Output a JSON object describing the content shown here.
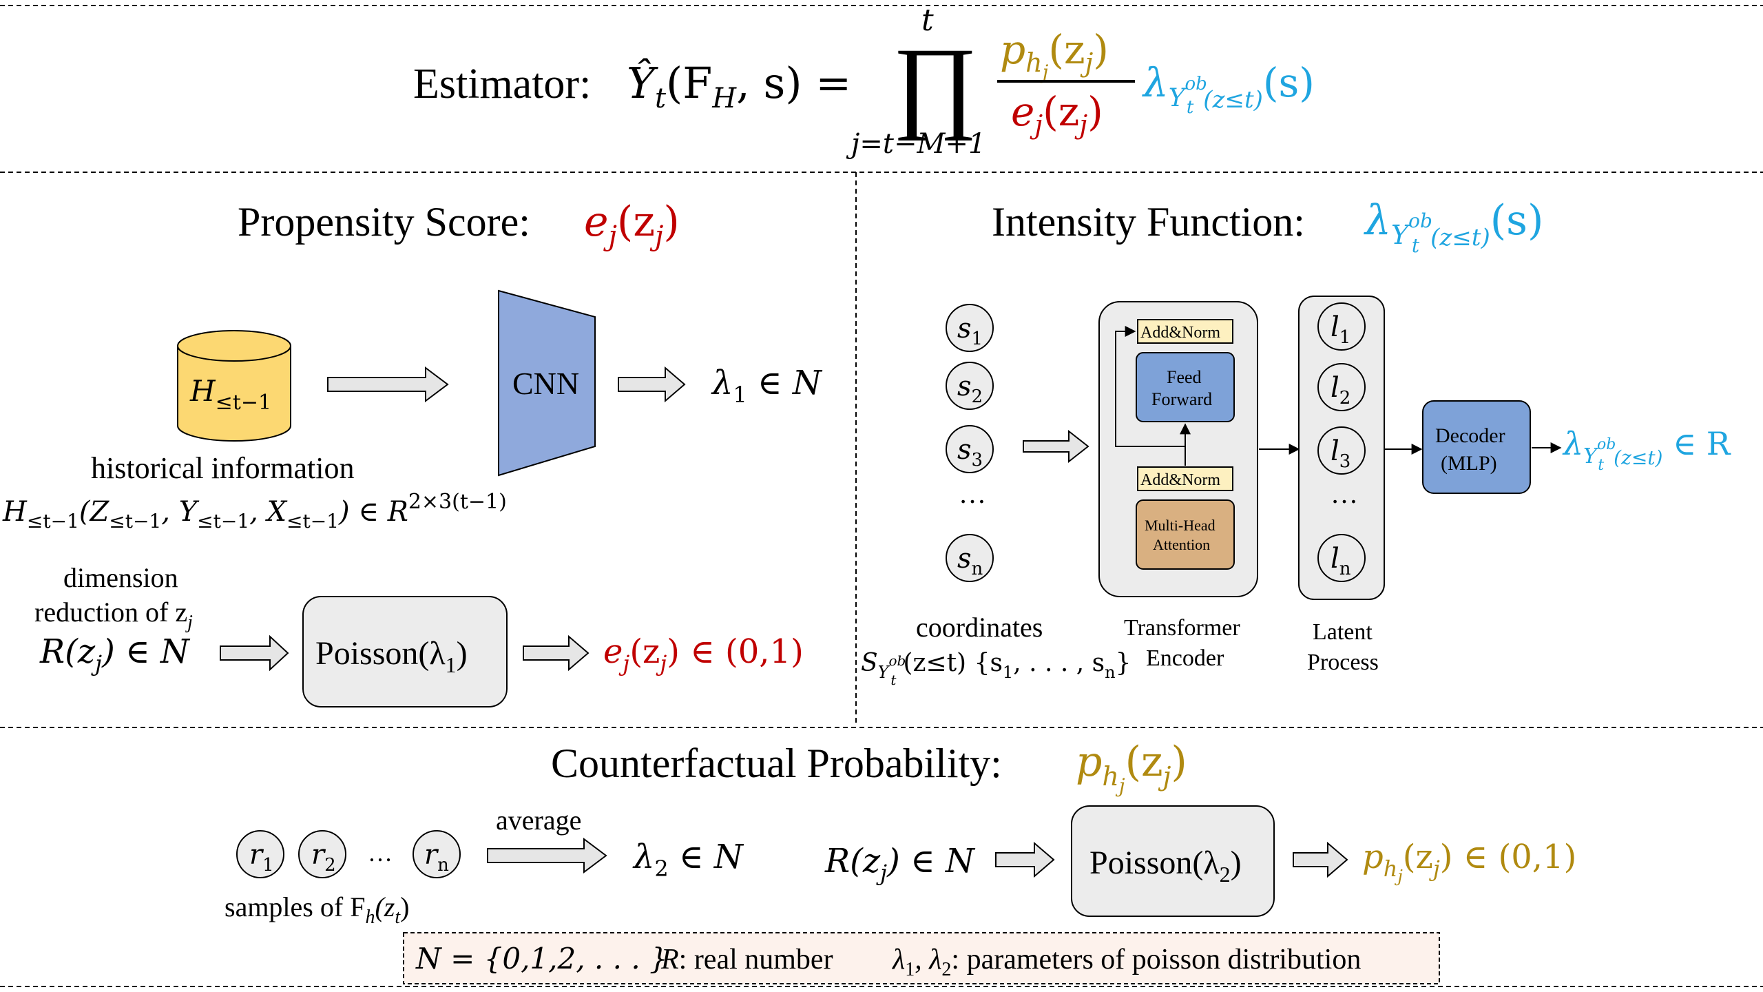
{
  "colors": {
    "propensity_red": "#c00000",
    "intensity_blue": "#1fa5e0",
    "counterfactual_gold": "#b08a10",
    "cnn_fill": "#8fa9dc",
    "cylinder_fill": "#fcd872",
    "addnorm_fill": "#fdf0c0",
    "ff_fill": "#7ea2d8",
    "mha_fill": "#d9b081",
    "decoder_fill": "#7ea2d8",
    "panel_fill": "#ececec",
    "legend_fill": "#fdf2ec"
  },
  "estimator": {
    "label": "Estimator:",
    "lhs": "Ŷ",
    "lhs_sub": "t",
    "lhs_args": "(F",
    "lhs_args_sub": "H",
    "lhs_args_end": ", s) =",
    "prod_top": "t",
    "prod_symbol": "∏",
    "prod_bottom": "j=t−M+1",
    "numerator": "p",
    "numerator_sub": "h",
    "numerator_subsub": "j",
    "numerator_arg": "(z",
    "numerator_arg_sub": "j",
    "numerator_arg_end": ")",
    "denominator": "e",
    "denominator_sub": "j",
    "denominator_arg": "(z",
    "denominator_arg_sub": "j",
    "denominator_arg_end": ")",
    "lambda": "λ",
    "lambda_sub": "Y",
    "lambda_sub_sup": "ob",
    "lambda_sub_sub": "t",
    "lambda_sub_arg": "(z≤t)",
    "lambda_arg": "(s)"
  },
  "propensity": {
    "title": "Propensity Score:",
    "title_math": "e",
    "title_math_sub": "j",
    "title_math_arg": "(z",
    "title_math_arg_sub": "j",
    "title_math_end": ")",
    "cylinder_label": "H",
    "cylinder_label_sub": "≤t−1",
    "hist_info": "historical information",
    "hist_formula_H": "H",
    "hist_formula_H_sub": "≤t−1",
    "hist_formula_open": "(Z",
    "hist_formula_Z_sub": "≤t−1",
    "hist_formula_Y": ", Y",
    "hist_formula_Y_sub": "≤t−1",
    "hist_formula_X": ", X",
    "hist_formula_X_sub": "≤t−1",
    "hist_formula_close": ") ∈ R",
    "hist_formula_sup": "2×3(t−1)",
    "cnn_label": "CNN",
    "lambda1": "λ",
    "lambda1_sub": "1",
    "lambda1_rest": " ∈ N",
    "dim_line1": "dimension",
    "dim_line2": "reduction of z",
    "dim_line2_sub": "j",
    "rz": "R(z",
    "rz_sub": "j",
    "rz_end": ") ∈ N",
    "poisson": "Poisson(λ",
    "poisson_sub": "1",
    "poisson_end": ")",
    "ej_out": "e",
    "ej_out_sub": "j",
    "ej_out_arg": "(z",
    "ej_out_arg_sub": "j",
    "ej_out_end": ") ∈ (0,1)"
  },
  "intensity": {
    "title": "Intensity Function:",
    "title_math": "λ",
    "title_math_sub": "Y",
    "title_math_sup": "ob",
    "title_math_subsub": "t",
    "title_math_arg": "(z≤t)",
    "title_math_end": "(s)",
    "inputs": [
      "s",
      "s",
      "s",
      "…",
      "s"
    ],
    "input_subs": [
      "1",
      "2",
      "3",
      "",
      "n"
    ],
    "latents": [
      "l",
      "l",
      "l",
      "…",
      "l"
    ],
    "latent_subs": [
      "1",
      "2",
      "3",
      "",
      "n"
    ],
    "addnorm_top": "Add&Norm",
    "feed_forward_1": "Feed",
    "feed_forward_2": "Forward",
    "addnorm_bottom": "Add&Norm",
    "mha_1": "Multi-Head",
    "mha_2": "Attention",
    "coordinates": "coordinates",
    "coord_S": "S",
    "coord_S_sub": "Y",
    "coord_S_sup": "ob",
    "coord_S_subsub": "t",
    "coord_rest": "(z≤t) {s",
    "coord_s1_sub": "1",
    "coord_mid": ", . . . , s",
    "coord_sn_sub": "n",
    "coord_end": "}",
    "encoder_line1": "Transformer",
    "encoder_line2": "Encoder",
    "latent_line1": "Latent",
    "latent_line2": "Process",
    "decoder_line1": "Decoder",
    "decoder_line2": "(MLP)",
    "out_lambda": "λ",
    "out_sub": "Y",
    "out_sup": "ob",
    "out_subsub": "t",
    "out_arg": "(z≤t)",
    "out_rest": " ∈ R"
  },
  "counterfactual": {
    "title": "Counterfactual Probability:",
    "title_math": "p",
    "title_math_sub": "h",
    "title_math_subsub": "j",
    "title_math_arg": "(z",
    "title_math_arg_sub": "j",
    "title_math_end": ")",
    "samples": [
      "r",
      "r",
      "…",
      "r"
    ],
    "sample_subs": [
      "1",
      "2",
      "",
      "n"
    ],
    "average": "average",
    "lambda2": "λ",
    "lambda2_sub": "2",
    "lambda2_rest": " ∈ N",
    "samples_label": "samples of F",
    "samples_label_sub": "h",
    "samples_label_arg": "(z",
    "samples_label_arg_sub": "t",
    "samples_label_end": ")",
    "rz": "R(z",
    "rz_sub": "j",
    "rz_end": ") ∈ N",
    "poisson": "Poisson(λ",
    "poisson_sub": "2",
    "poisson_end": ")",
    "ph_out": "p",
    "ph_out_sub": "h",
    "ph_out_subsub": "j",
    "ph_out_arg": "(z",
    "ph_out_arg_sub": "j",
    "ph_out_end": ") ∈ (0,1)"
  },
  "legend": {
    "n_def": "N = {0,1,2, . . . }",
    "r_label": "R",
    "r_def": ": real number",
    "lambda_label": "λ",
    "lambda_sub1": "1",
    "lambda_comma": ", λ",
    "lambda_sub2": "2",
    "lambda_def": ": parameters of poisson distribution"
  }
}
